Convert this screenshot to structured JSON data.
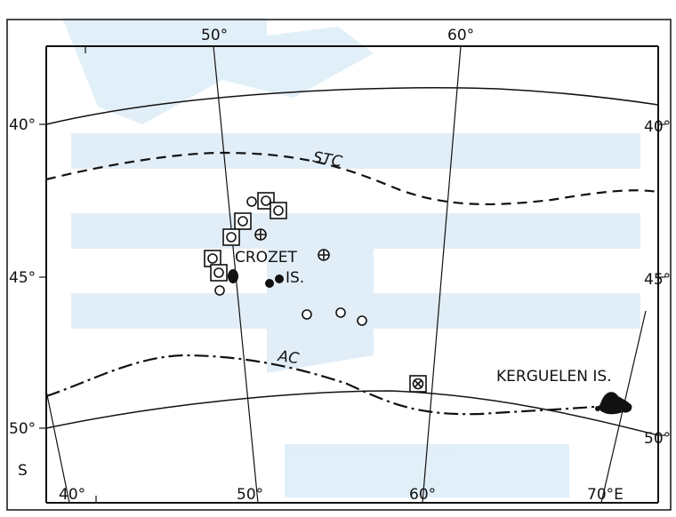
{
  "map": {
    "labels": {
      "lon_top_50": "50°",
      "lon_top_60": "60°",
      "lat_left_40": "40°",
      "lat_left_45": "45°",
      "lat_left_50": "50°",
      "lat_right_40": "40°",
      "lat_right_45": "45°",
      "lat_right_50": "50°",
      "hemisphere": "S",
      "lon_bottom_40": "40°",
      "lon_bottom_50": "50°",
      "lon_bottom_60": "60°",
      "lon_bottom_70": "70°E",
      "stc": "STC",
      "ac": "AC",
      "crozet": "CROZET",
      "is_crozet": "IS.",
      "kerguelen": "KERGUELEN IS."
    },
    "colors": {
      "ink": "#111111",
      "watermark": "#dcecf7"
    },
    "symbols": {
      "open-circle": "open circle",
      "boxed-circle": "circle in square",
      "filled-circle": "filled circle",
      "circle-plus": "circle with cross",
      "boxed-circle-x": "boxed circle with x"
    }
  }
}
